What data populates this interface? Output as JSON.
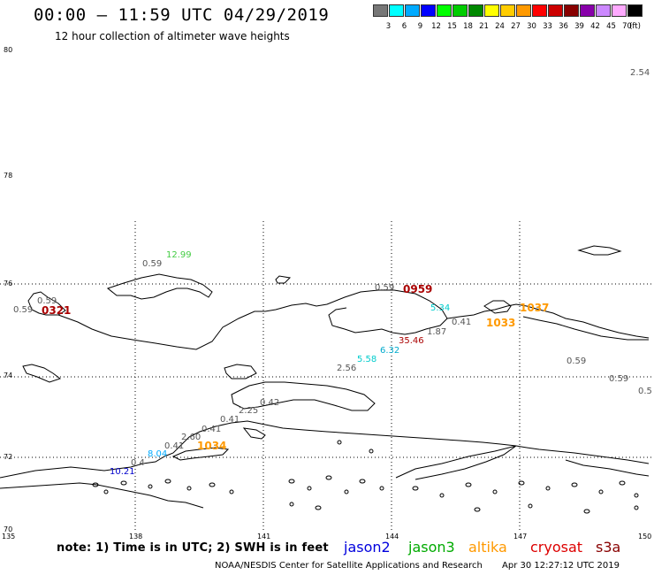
{
  "header": {
    "title": "00:00 – 11:59 UTC 04/29/2019",
    "subtitle": "12 hour collection of altimeter wave heights"
  },
  "colorbar": {
    "colors": [
      "#777777",
      "#00ffff",
      "#00aaff",
      "#0000ff",
      "#00ff00",
      "#00cc00",
      "#008800",
      "#ffff00",
      "#ffcc00",
      "#ff9900",
      "#ff0000",
      "#cc0000",
      "#880000",
      "#8800aa",
      "#cc88ff",
      "#ffaaff",
      "#000000"
    ],
    "labels": [
      "3",
      "6",
      "9",
      "12",
      "15",
      "18",
      "21",
      "24",
      "27",
      "30",
      "33",
      "36",
      "39",
      "42",
      "45",
      "70",
      "(ft)"
    ]
  },
  "axes": {
    "lat_labels": [
      "80",
      "78",
      "76",
      "74",
      "72",
      "70"
    ],
    "lon_labels": [
      "135",
      "138",
      "141",
      "144",
      "147",
      "150"
    ]
  },
  "observations": [
    {
      "text": "2.54",
      "color": "#555555"
    },
    {
      "text": "12.99",
      "color": "#44cc44"
    },
    {
      "text": "0.59",
      "color": "#555555"
    },
    {
      "text": "0.59",
      "color": "#555555"
    },
    {
      "text": "0.59",
      "color": "#555555"
    },
    {
      "text": "0321",
      "color": "#aa0000"
    },
    {
      "text": "0.59",
      "color": "#555555"
    },
    {
      "text": "0959",
      "color": "#aa0000"
    },
    {
      "text": "5.34",
      "color": "#00cccc"
    },
    {
      "text": "1037",
      "color": "#ff9900"
    },
    {
      "text": "0.41",
      "color": "#555555"
    },
    {
      "text": "1033",
      "color": "#ff9900"
    },
    {
      "text": "1.87",
      "color": "#555555"
    },
    {
      "text": "35.46",
      "color": "#aa0000"
    },
    {
      "text": "6.32",
      "color": "#00aacc"
    },
    {
      "text": "5.58",
      "color": "#00cccc"
    },
    {
      "text": "2.56",
      "color": "#555555"
    },
    {
      "text": "0.59",
      "color": "#555555"
    },
    {
      "text": "0.59",
      "color": "#555555"
    },
    {
      "text": "0.5",
      "color": "#555555"
    },
    {
      "text": "0.42",
      "color": "#555555"
    },
    {
      "text": "2.25",
      "color": "#555555"
    },
    {
      "text": "0.41",
      "color": "#555555"
    },
    {
      "text": "0.41",
      "color": "#555555"
    },
    {
      "text": "2.60",
      "color": "#555555"
    },
    {
      "text": "0.41",
      "color": "#555555"
    },
    {
      "text": "1034",
      "color": "#ff9900"
    },
    {
      "text": "8.04",
      "color": "#00aaff"
    },
    {
      "text": "0.4",
      "color": "#555555"
    },
    {
      "text": "10.21",
      "color": "#0000cc"
    }
  ],
  "footer": {
    "note": "note: 1) Time is in UTC; 2) SWH is in feet",
    "satellites": [
      {
        "name": "jason2",
        "color": "#0000dd"
      },
      {
        "name": "jason3",
        "color": "#00aa00"
      },
      {
        "name": "altika",
        "color": "#ff9900"
      },
      {
        "name": "cryosat",
        "color": "#dd0000"
      },
      {
        "name": "s3a",
        "color": "#880000"
      }
    ],
    "credit": "NOAA/NESDIS Center for Satellite Applications and Research",
    "timestamp": "Apr 30 12:27:12 UTC 2019"
  }
}
